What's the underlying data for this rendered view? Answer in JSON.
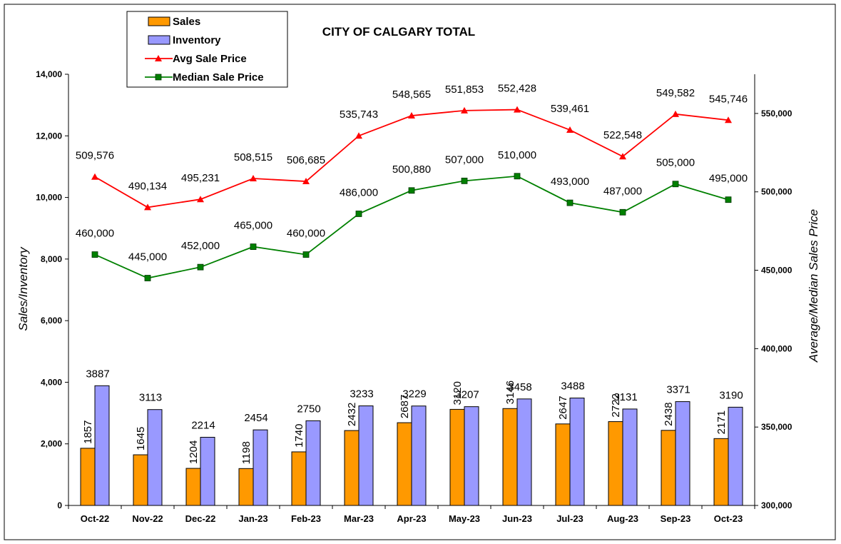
{
  "chart_data": {
    "type": "bar",
    "title": "CITY OF CALGARY TOTAL",
    "ylabel": "Sales/Inventory",
    "y2label": "Average/Median Sales Price",
    "ylim": [
      0,
      14000
    ],
    "y2lim": [
      300000,
      575000
    ],
    "yticks": [
      "0",
      "2,000",
      "4,000",
      "6,000",
      "8,000",
      "10,000",
      "12,000",
      "14,000"
    ],
    "y2ticks": [
      "300,000",
      "350,000",
      "400,000",
      "450,000",
      "500,000",
      "550,000"
    ],
    "categories": [
      "Oct-22",
      "Nov-22",
      "Dec-22",
      "Jan-23",
      "Feb-23",
      "Mar-23",
      "Apr-23",
      "May-23",
      "Jun-23",
      "Jul-23",
      "Aug-23",
      "Sep-23",
      "Oct-23"
    ],
    "series": [
      {
        "name": "Sales",
        "type": "bar",
        "axis": "left",
        "color": "#FF9900",
        "values": [
          1857,
          1645,
          1204,
          1198,
          1740,
          2432,
          2687,
          3120,
          3146,
          2647,
          2722,
          2438,
          2171
        ],
        "labels": [
          "1857",
          "1645",
          "1204",
          "1198",
          "1740",
          "2432",
          "2687",
          "3120",
          "3146",
          "2647",
          "2722",
          "2438",
          "2171"
        ]
      },
      {
        "name": "Inventory",
        "type": "bar",
        "axis": "left",
        "color": "#9999FF",
        "values": [
          3887,
          3113,
          2214,
          2454,
          2750,
          3233,
          3229,
          3207,
          3458,
          3488,
          3131,
          3371,
          3190
        ],
        "labels": [
          "3887",
          "3113",
          "2214",
          "2454",
          "2750",
          "3233",
          "3229",
          "3207",
          "3458",
          "3488",
          "3131",
          "3371",
          "3190"
        ]
      },
      {
        "name": "Avg Sale Price",
        "type": "line",
        "axis": "right",
        "color": "#FF0000",
        "marker": "triangle",
        "values": [
          509576,
          490134,
          495231,
          508515,
          506685,
          535743,
          548565,
          551853,
          552428,
          539461,
          522548,
          549582,
          545746
        ],
        "labels": [
          "509,576",
          "490,134",
          "495,231",
          "508,515",
          "506,685",
          "535,743",
          "548,565",
          "551,853",
          "552,428",
          "539,461",
          "522,548",
          "549,582",
          "545,746"
        ]
      },
      {
        "name": "Median Sale Price",
        "type": "line",
        "axis": "right",
        "color": "#008000",
        "marker": "square",
        "values": [
          460000,
          445000,
          452000,
          465000,
          460000,
          486000,
          500880,
          507000,
          510000,
          493000,
          487000,
          505000,
          495000
        ],
        "labels": [
          "460,000",
          "445,000",
          "452,000",
          "465,000",
          "460,000",
          "486,000",
          "500,880",
          "507,000",
          "510,000",
          "493,000",
          "487,000",
          "505,000",
          "495,000"
        ]
      }
    ],
    "legend": "top-left",
    "grid": false
  }
}
